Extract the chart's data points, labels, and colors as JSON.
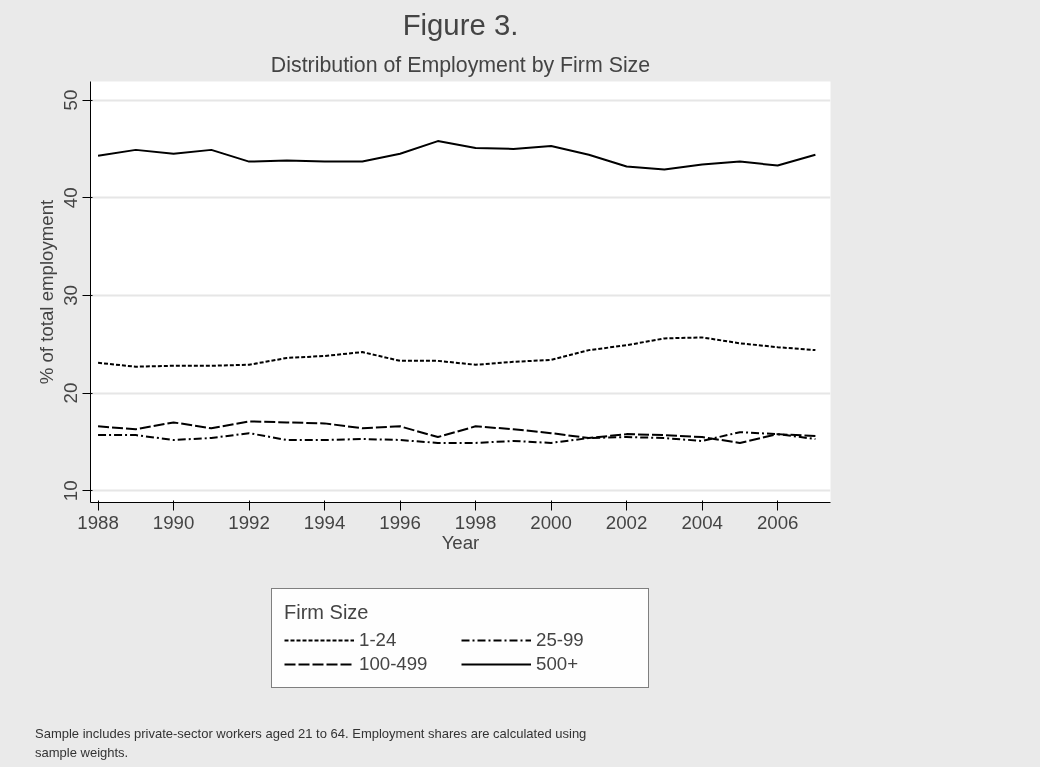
{
  "chart_data": {
    "type": "line",
    "title": "Figure 3.",
    "subtitle": "Distribution of Employment by Firm Size",
    "xlabel": "Year",
    "ylabel": "% of total employment",
    "legend_title": "Firm Size",
    "legend": "bottom",
    "grid": "y",
    "x": [
      1988,
      1989,
      1990,
      1991,
      1992,
      1993,
      1994,
      1995,
      1996,
      1997,
      1998,
      1999,
      2000,
      2001,
      2002,
      2003,
      2004,
      2005,
      2006,
      2007
    ],
    "xlim": [
      1987.8,
      2007.4
    ],
    "xticks": [
      1988,
      1990,
      1992,
      1994,
      1996,
      1998,
      2000,
      2002,
      2004,
      2006
    ],
    "ylim": [
      8.8,
      51.9
    ],
    "yticks": [
      10,
      20,
      30,
      40,
      50
    ],
    "series": [
      {
        "name": "1-24",
        "color": "#000000",
        "line_style": "dashed",
        "values": [
          23.1,
          22.7,
          22.8,
          22.8,
          22.9,
          23.6,
          23.8,
          24.2,
          23.3,
          23.3,
          22.9,
          23.2,
          23.4,
          24.4,
          24.9,
          25.6,
          25.7,
          25.1,
          24.7,
          24.4
        ]
      },
      {
        "name": "25-99",
        "color": "#000000",
        "line_style": "dashdot",
        "values": [
          15.7,
          15.7,
          15.2,
          15.4,
          15.9,
          15.2,
          15.2,
          15.3,
          15.2,
          14.9,
          14.9,
          15.1,
          14.9,
          15.4,
          15.5,
          15.4,
          15.1,
          16.0,
          15.8,
          15.3
        ]
      },
      {
        "name": "100-499",
        "color": "#000000",
        "line_style": "longdash",
        "values": [
          16.6,
          16.3,
          17.0,
          16.4,
          17.1,
          17.0,
          16.9,
          16.4,
          16.6,
          15.5,
          16.6,
          16.3,
          15.9,
          15.4,
          15.8,
          15.7,
          15.5,
          14.9,
          15.8,
          15.6
        ]
      },
      {
        "name": "500+",
        "color": "#000000",
        "line_style": "solid",
        "values": [
          44.3,
          44.9,
          44.5,
          44.9,
          43.7,
          43.8,
          43.7,
          43.7,
          44.5,
          45.8,
          45.1,
          45.0,
          45.3,
          44.4,
          43.2,
          42.9,
          43.4,
          43.7,
          43.3,
          44.4
        ]
      }
    ],
    "annotations": [
      "Sample includes private-sector workers aged 21 to 64.  Employment shares are calculated using sample weights."
    ]
  }
}
